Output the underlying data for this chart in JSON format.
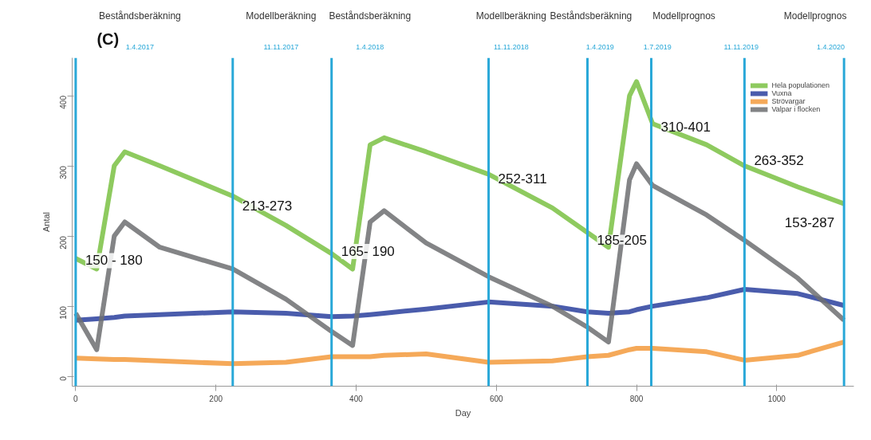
{
  "chart_data": {
    "type": "line",
    "title": "(C)",
    "xlabel": "Day",
    "ylabel": "Antal",
    "x": [
      0,
      30,
      55,
      70,
      120,
      224,
      300,
      365,
      395,
      420,
      440,
      500,
      589,
      680,
      730,
      760,
      790,
      800,
      823,
      900,
      954,
      1030,
      1096
    ],
    "series": [
      {
        "name": "Hela populationen",
        "color": "#7ac143",
        "values": [
          168,
          153,
          300,
          320,
          300,
          257,
          215,
          175,
          153,
          330,
          340,
          320,
          288,
          240,
          205,
          184,
          400,
          420,
          360,
          330,
          300,
          270,
          246
        ]
      },
      {
        "name": "Vuxna",
        "color": "#2a3f9d",
        "values": [
          80,
          82,
          84,
          86,
          88,
          92,
          90,
          85,
          86,
          88,
          90,
          96,
          106,
          100,
          92,
          90,
          92,
          95,
          100,
          112,
          124,
          118,
          101
        ]
      },
      {
        "name": "Strövargar",
        "color": "#f39a3c",
        "values": [
          26,
          25,
          24,
          24,
          22,
          18,
          20,
          28,
          28,
          28,
          30,
          32,
          20,
          22,
          28,
          30,
          38,
          40,
          40,
          35,
          23,
          30,
          49
        ]
      },
      {
        "name": "Valpar i flocken",
        "color": "#6d6e71",
        "values": [
          90,
          38,
          200,
          220,
          184,
          153,
          110,
          64,
          44,
          220,
          236,
          190,
          142,
          100,
          70,
          49,
          280,
          303,
          272,
          230,
          194,
          140,
          80
        ]
      }
    ],
    "xlim": [
      -5,
      1110
    ],
    "ylim": [
      -14,
      454
    ],
    "xticks": [
      0,
      200,
      400,
      600,
      800,
      1000
    ],
    "yticks": [
      0,
      100,
      200,
      300,
      400
    ],
    "grid": false,
    "legend": "top right",
    "line_style": "solid",
    "marker": "none",
    "ref_lines": [
      {
        "axis": "x",
        "value": 0,
        "label": "1.4.2017",
        "color": "#29a8d8"
      },
      {
        "axis": "x",
        "value": 224,
        "label": "11.11.2017",
        "color": "#29a8d8"
      },
      {
        "axis": "x",
        "value": 365,
        "label": "1.4.2018",
        "color": "#29a8d8"
      },
      {
        "axis": "x",
        "value": 589,
        "label": "11.11.2018",
        "color": "#29a8d8"
      },
      {
        "axis": "x",
        "value": 730,
        "label": "1.4.2019",
        "color": "#29a8d8"
      },
      {
        "axis": "x",
        "value": 821,
        "label": "1.7.2019",
        "color": "#29a8d8"
      },
      {
        "axis": "x",
        "value": 954,
        "label": "11.11.2019",
        "color": "#29a8d8"
      },
      {
        "axis": "x",
        "value": 1096,
        "label": "1.4.2020",
        "color": "#29a8d8"
      }
    ],
    "annotations": [
      "Beståndsberäkning",
      "Modellberäkning",
      "Beståndsberäkning",
      "Modellberäkning",
      "Beståndsberäkning",
      "Modellprognos",
      "Modellprognos",
      {
        "text": "150 - 180",
        "x": 0,
        "y": 165
      },
      {
        "text": "213-273",
        "x": 224,
        "y": 243
      },
      {
        "text": "165- 190",
        "x": 365,
        "y": 178
      },
      {
        "text": "252-311",
        "x": 589,
        "y": 282
      },
      {
        "text": "185-205",
        "x": 730,
        "y": 195
      },
      {
        "text": "310-401",
        "x": 821,
        "y": 356
      },
      {
        "text": "263-352",
        "x": 954,
        "y": 308
      },
      {
        "text": "153-287",
        "x": 1096,
        "y": 220
      }
    ]
  }
}
